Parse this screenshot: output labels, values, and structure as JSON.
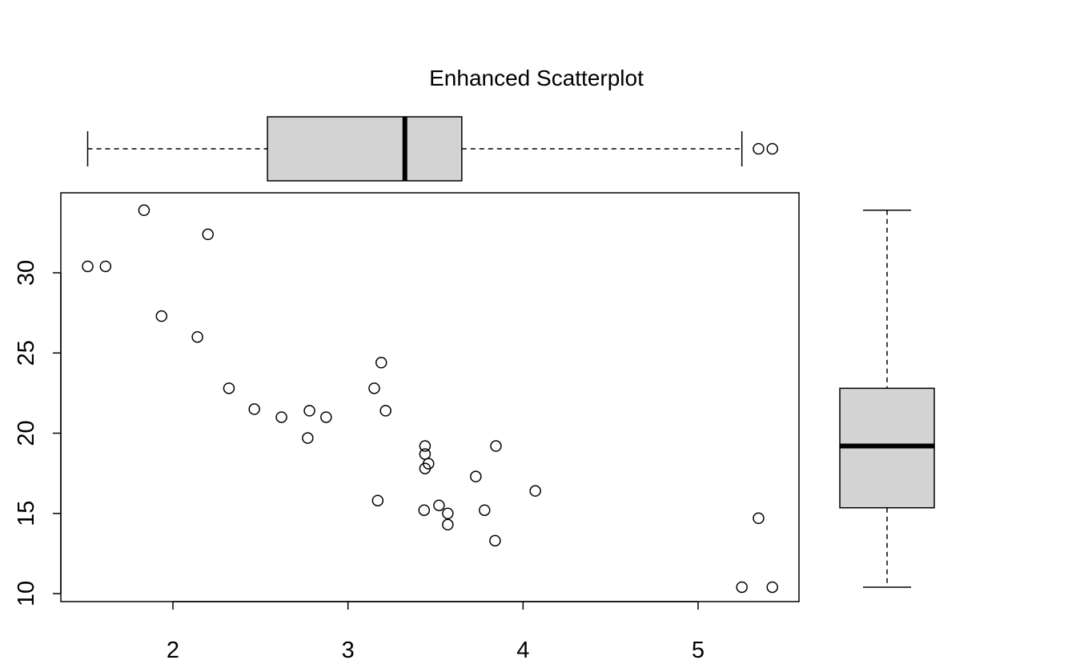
{
  "chart_data": [
    {
      "type": "scatter",
      "title": "Enhanced Scatterplot",
      "xlabel": "",
      "ylabel": "",
      "xlim": [
        1.36,
        5.58
      ],
      "ylim": [
        9.5,
        35.0
      ],
      "x_ticks": [
        2,
        3,
        4,
        5
      ],
      "y_ticks": [
        10,
        15,
        20,
        25,
        30
      ],
      "x_tick_labels": [
        "2",
        "3",
        "4",
        "5"
      ],
      "y_tick_labels": [
        "10",
        "15",
        "20",
        "25",
        "30"
      ],
      "grid": false,
      "point_style": "open-circle",
      "points": [
        {
          "x": 1.513,
          "y": 30.4
        },
        {
          "x": 1.615,
          "y": 30.4
        },
        {
          "x": 1.835,
          "y": 33.9
        },
        {
          "x": 1.935,
          "y": 27.3
        },
        {
          "x": 2.14,
          "y": 26.0
        },
        {
          "x": 2.2,
          "y": 32.4
        },
        {
          "x": 2.32,
          "y": 22.8
        },
        {
          "x": 2.465,
          "y": 21.5
        },
        {
          "x": 2.62,
          "y": 21.0
        },
        {
          "x": 2.77,
          "y": 19.7
        },
        {
          "x": 2.78,
          "y": 21.4
        },
        {
          "x": 2.875,
          "y": 21.0
        },
        {
          "x": 3.15,
          "y": 22.8
        },
        {
          "x": 3.17,
          "y": 15.8
        },
        {
          "x": 3.19,
          "y": 24.4
        },
        {
          "x": 3.215,
          "y": 21.4
        },
        {
          "x": 3.435,
          "y": 15.2
        },
        {
          "x": 3.44,
          "y": 18.7
        },
        {
          "x": 3.44,
          "y": 19.2
        },
        {
          "x": 3.44,
          "y": 17.8
        },
        {
          "x": 3.46,
          "y": 18.1
        },
        {
          "x": 3.52,
          "y": 15.5
        },
        {
          "x": 3.57,
          "y": 14.3
        },
        {
          "x": 3.57,
          "y": 15.0
        },
        {
          "x": 3.73,
          "y": 17.3
        },
        {
          "x": 3.78,
          "y": 15.2
        },
        {
          "x": 3.84,
          "y": 13.3
        },
        {
          "x": 3.845,
          "y": 19.2
        },
        {
          "x": 4.07,
          "y": 16.4
        },
        {
          "x": 5.25,
          "y": 10.4
        },
        {
          "x": 5.345,
          "y": 14.7
        },
        {
          "x": 5.424,
          "y": 10.4
        }
      ]
    },
    {
      "type": "boxplot",
      "orientation": "horizontal",
      "axis": "x",
      "lower_whisker": 1.513,
      "q1": 2.54,
      "median": 3.325,
      "q3": 3.65,
      "upper_whisker": 5.25,
      "outliers": [
        5.345,
        5.424
      ],
      "fill": "#d3d3d3"
    },
    {
      "type": "boxplot",
      "orientation": "vertical",
      "axis": "y",
      "lower_whisker": 10.4,
      "q1": 15.35,
      "median": 19.2,
      "q3": 22.8,
      "upper_whisker": 33.9,
      "outliers": [],
      "fill": "#d3d3d3"
    }
  ]
}
